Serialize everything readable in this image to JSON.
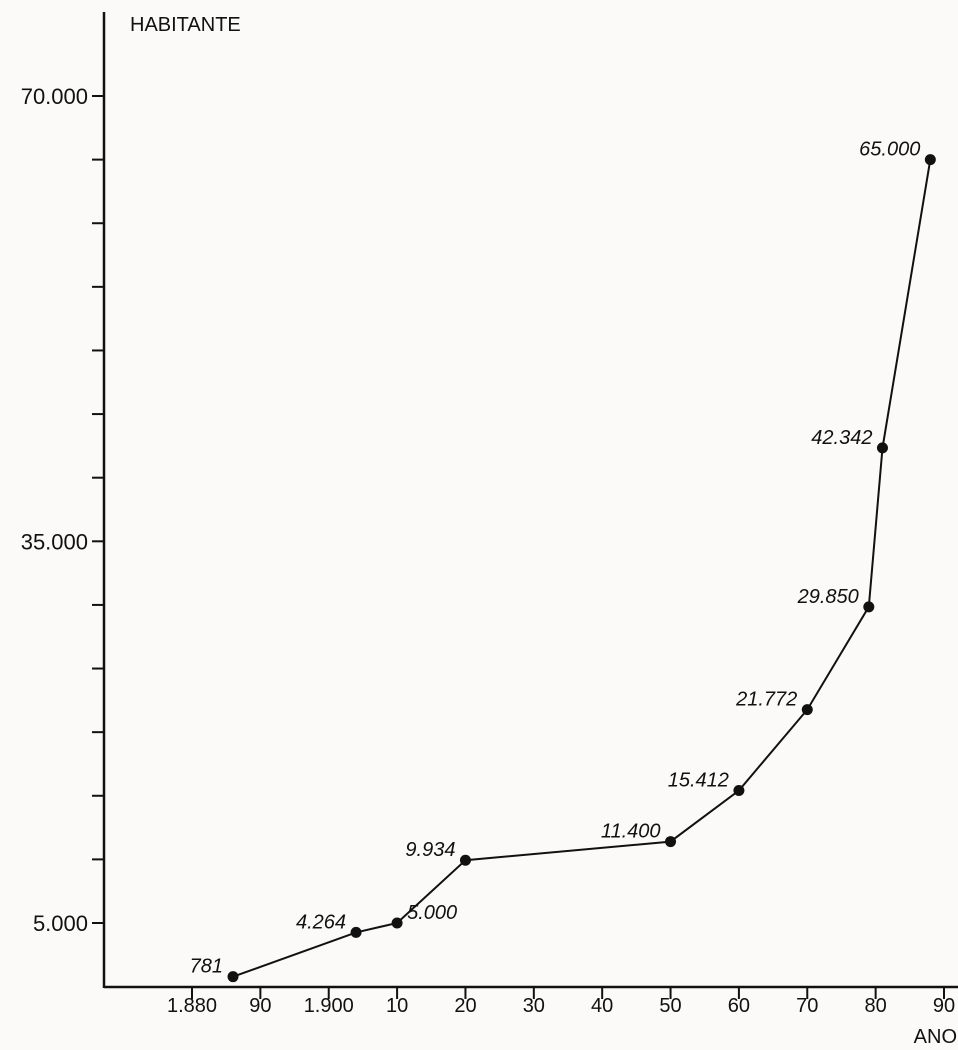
{
  "chart_data": {
    "type": "line",
    "title": "",
    "xlabel": "ANO",
    "ylabel": "HABITANTE",
    "xlim": [
      1875,
      1893
    ],
    "ylim": [
      0,
      75000
    ],
    "grid": false,
    "x_ticks": [
      {
        "value": 1880,
        "label": "1.880"
      },
      {
        "value": 1890,
        "label": "90"
      },
      {
        "value": 1900,
        "label": "1.900"
      },
      {
        "value": 1910,
        "label": "10"
      },
      {
        "value": 1920,
        "label": "20"
      },
      {
        "value": 1930,
        "label": "30"
      },
      {
        "value": 1940,
        "label": "40"
      },
      {
        "value": 1950,
        "label": "50"
      },
      {
        "value": 1960,
        "label": "60"
      },
      {
        "value": 1970,
        "label": "70"
      },
      {
        "value": 1980,
        "label": "80"
      },
      {
        "value": 1990,
        "label": "90"
      }
    ],
    "y_ticks": [
      {
        "value": 5000,
        "label": "5.000"
      },
      {
        "value": 35000,
        "label": "35.000"
      },
      {
        "value": 70000,
        "label": "70.000"
      }
    ],
    "y_minor_ticks": [
      10000,
      15000,
      20000,
      25000,
      30000,
      40000,
      45000,
      50000,
      55000,
      60000,
      65000
    ],
    "points": [
      {
        "x": 1886,
        "y": 781,
        "label": "781",
        "label_pos": "left"
      },
      {
        "x": 1904,
        "y": 4264,
        "label": "4.264",
        "label_pos": "left"
      },
      {
        "x": 1910,
        "y": 5000,
        "label": "5.000",
        "label_pos": "right"
      },
      {
        "x": 1920,
        "y": 9934,
        "label": "9.934",
        "label_pos": "left"
      },
      {
        "x": 1950,
        "y": 11400,
        "label": "11.400",
        "label_pos": "left"
      },
      {
        "x": 1960,
        "y": 15412,
        "label": "15.412",
        "label_pos": "left"
      },
      {
        "x": 1970,
        "y": 21772,
        "label": "21.772",
        "label_pos": "left"
      },
      {
        "x": 1979,
        "y": 29850,
        "label": "29.850",
        "label_pos": "left"
      },
      {
        "x": 1981,
        "y": 42342,
        "label": "42.342",
        "label_pos": "left"
      },
      {
        "x": 1988,
        "y": 65000,
        "label": "65.000",
        "label_pos": "left"
      }
    ]
  }
}
